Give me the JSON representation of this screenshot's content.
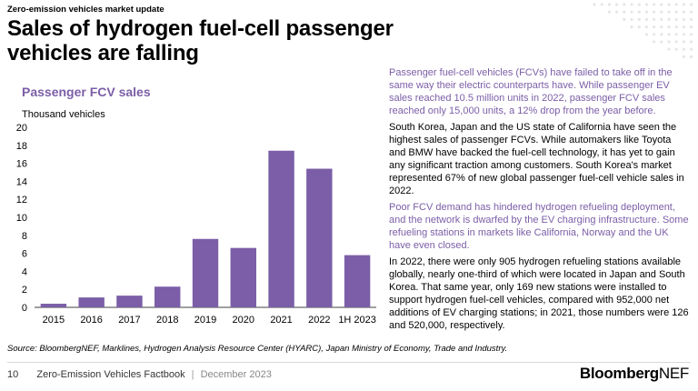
{
  "header": {
    "kicker": "Zero-emission vehicles market update",
    "title": "Sales of hydrogen fuel-cell passenger vehicles are falling"
  },
  "chart_data": {
    "type": "bar",
    "title": "Passenger FCV sales",
    "ylabel": "Thousand vehicles",
    "xlabel": "",
    "categories": [
      "2015",
      "2016",
      "2017",
      "2018",
      "2019",
      "2020",
      "2021",
      "2022",
      "1H 2023"
    ],
    "values": [
      0.4,
      1.1,
      1.3,
      2.3,
      7.6,
      6.6,
      17.4,
      15.4,
      5.8
    ],
    "ylim": [
      0,
      20
    ],
    "yticks": [
      "0",
      "2",
      "4",
      "6",
      "8",
      "10",
      "12",
      "14",
      "16",
      "18",
      "20"
    ],
    "grid": false,
    "legend": "none",
    "bar_color": "#7b5ea7"
  },
  "text": {
    "p1": "Passenger fuel-cell vehicles (FCVs) have failed to take off in the same way their electric counterparts have. While passenger EV sales reached 10.5 million units in 2022, passenger FCV sales reached only 15,000 units, a 12% drop from the year before.",
    "p2": "South Korea, Japan and the US state of California have seen the highest sales of passenger FCVs. While automakers like Toyota and BMW have backed the fuel-cell technology, it has yet to gain any significant traction among customers. South Korea's market represented 67% of new global passenger fuel-cell vehicle sales in 2022.",
    "p3": "Poor FCV demand has hindered hydrogen refueling deployment, and the network is dwarfed by the EV charging infrastructure. Some refueling stations in markets like California, Norway and the UK have even closed.",
    "p4": "In 2022, there were only 905 hydrogen refueling stations available globally, nearly one-third of which were located in Japan and South Korea. That same year, only 169 new stations were installed to support hydrogen fuel-cell vehicles, compared with 952,000 net additions of EV charging stations; in 2021, those numbers were 126 and 520,000, respectively."
  },
  "source": "Source: BloombergNEF, Marklines, Hydrogen Analysis Resource Center (HYARC), Japan Ministry of Economy, Trade and Industry.",
  "footer": {
    "page": "10",
    "doc": "Zero-Emission Vehicles Factbook",
    "sep": "|",
    "date": "December 2023",
    "logo_main": "Bloomberg",
    "logo_nef": "NEF"
  },
  "colors": {
    "accent": "#7b5ea7",
    "dots": "#e6e6e6"
  }
}
